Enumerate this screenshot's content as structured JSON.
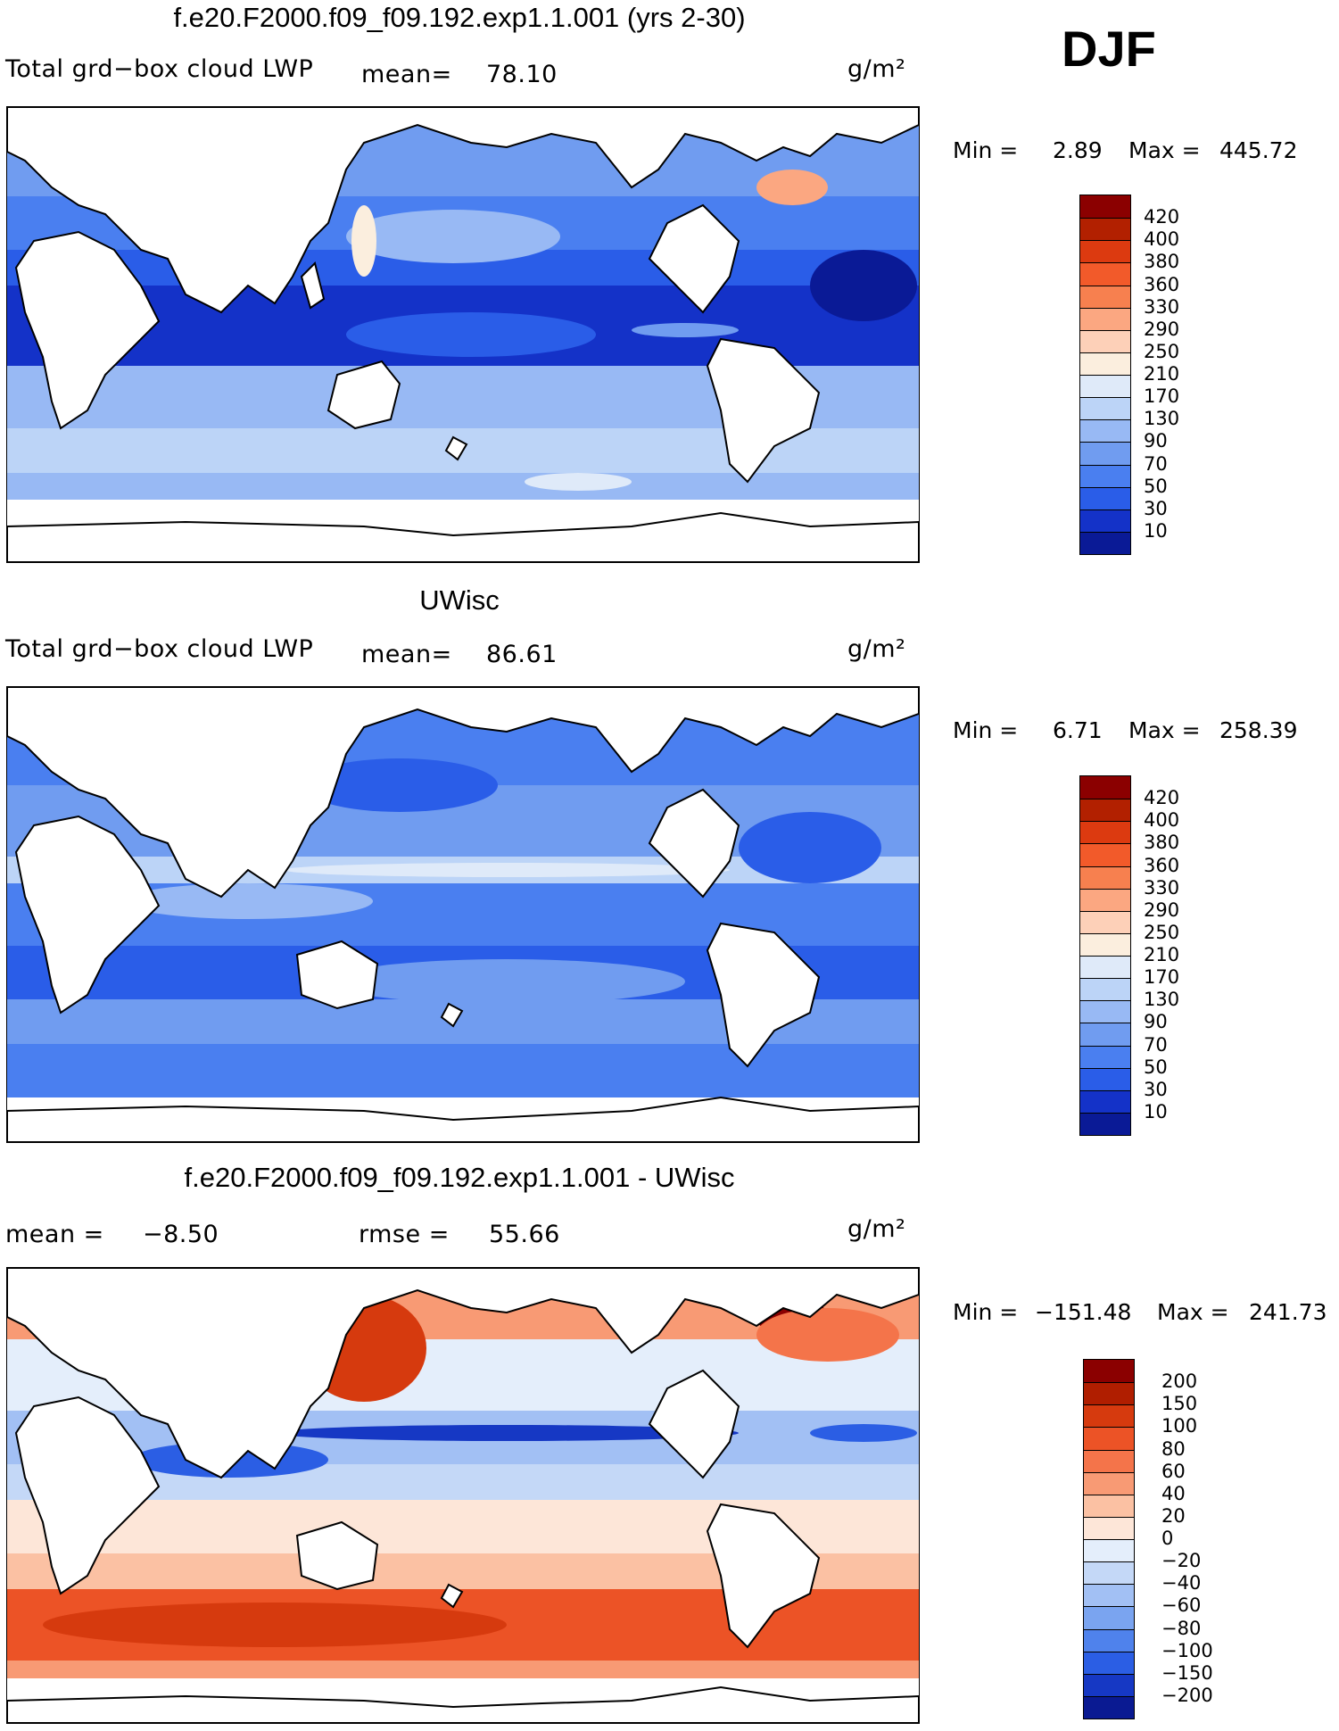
{
  "season": "DJF",
  "panels": [
    {
      "id": "model",
      "title": "f.e20.F2000.f09_f09.192.exp1.1.001 (yrs 2-30)",
      "left_label": "Total grd−box cloud LWP",
      "mean_label": "mean=",
      "mean_value": "78.10",
      "units": "g/m²",
      "min_label": "Min =",
      "min_value": "2.89",
      "max_label": "Max =",
      "max_value": "445.72",
      "colorbar_labels": [
        "420",
        "400",
        "380",
        "360",
        "330",
        "290",
        "250",
        "210",
        "170",
        "130",
        "90",
        "70",
        "50",
        "30",
        "10"
      ],
      "colorbar_colors": [
        "#8b0000",
        "#b22000",
        "#dc3a10",
        "#f25a2a",
        "#f7804f",
        "#fba781",
        "#fdd0b8",
        "#fbeede",
        "#dfeaf9",
        "#bcd4f7",
        "#98b9f4",
        "#709cf0",
        "#4a7ff0",
        "#2a5de8",
        "#1432c8",
        "#0a1a96"
      ]
    },
    {
      "id": "obs",
      "title": "UWisc",
      "left_label": "Total grd−box cloud LWP",
      "mean_label": "mean=",
      "mean_value": "86.61",
      "units": "g/m²",
      "min_label": "Min =",
      "min_value": "6.71",
      "max_label": "Max =",
      "max_value": "258.39",
      "colorbar_labels": [
        "420",
        "400",
        "380",
        "360",
        "330",
        "290",
        "250",
        "210",
        "170",
        "130",
        "90",
        "70",
        "50",
        "30",
        "10"
      ],
      "colorbar_colors": [
        "#8b0000",
        "#b22000",
        "#dc3a10",
        "#f25a2a",
        "#f7804f",
        "#fba781",
        "#fdd0b8",
        "#fbeede",
        "#dfeaf9",
        "#bcd4f7",
        "#98b9f4",
        "#709cf0",
        "#4a7ff0",
        "#2a5de8",
        "#1432c8",
        "#0a1a96"
      ]
    },
    {
      "id": "diff",
      "title": "f.e20.F2000.f09_f09.192.exp1.1.001 - UWisc",
      "mean_label": "mean =",
      "mean_value": "−8.50",
      "rmse_label": "rmse =",
      "rmse_value": "55.66",
      "units": "g/m²",
      "min_label": "Min =",
      "min_value": "−151.48",
      "max_label": "Max =",
      "max_value": "241.73",
      "colorbar_labels": [
        "200",
        "150",
        "100",
        "80",
        "60",
        "40",
        "20",
        "0",
        "−20",
        "−40",
        "−60",
        "−80",
        "−100",
        "−150",
        "−200"
      ],
      "colorbar_colors": [
        "#8b0000",
        "#b01e00",
        "#d63a0e",
        "#ec5326",
        "#f4744a",
        "#f89a74",
        "#fbc1a3",
        "#fde6d8",
        "#e4eefb",
        "#c4d8f7",
        "#a2c0f4",
        "#7aa4f0",
        "#4f82ec",
        "#2b5ee4",
        "#1638c4",
        "#0a1a92"
      ]
    }
  ]
}
